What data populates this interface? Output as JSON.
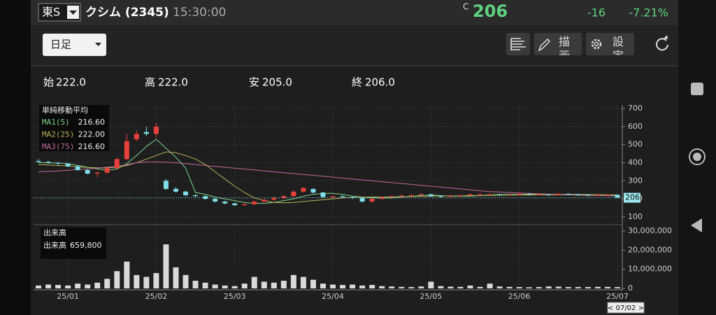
{
  "header": {
    "market": "東S",
    "name": "クシム (2345)",
    "time": "15:30:00",
    "price_prefix": "C",
    "price": "206",
    "change": "-16",
    "change_pct": "-7.21%"
  },
  "toolbar": {
    "period": "日足",
    "draw": "描画",
    "settings": "設定"
  },
  "ohlc": {
    "open_label": "始",
    "open": "222.0",
    "high_label": "高",
    "high": "222.0",
    "low_label": "安",
    "low": "205.0",
    "close_label": "終",
    "close": "206.0"
  },
  "chart_data": {
    "type": "candlestick",
    "categories": [
      null,
      null,
      null,
      "25/01",
      null,
      null,
      null,
      null,
      null,
      null,
      null,
      null,
      "25/02",
      null,
      null,
      null,
      null,
      null,
      null,
      null,
      "25/03",
      null,
      null,
      null,
      null,
      null,
      null,
      null,
      null,
      null,
      "25/04",
      null,
      null,
      null,
      null,
      null,
      null,
      null,
      null,
      null,
      "25/05",
      null,
      null,
      null,
      null,
      null,
      null,
      null,
      null,
      "25/06",
      null,
      null,
      null,
      null,
      null,
      null,
      null,
      null,
      null,
      "25/07"
    ],
    "ylim": [
      80,
      720
    ],
    "yticks": [
      100,
      200,
      300,
      400,
      500,
      600,
      700
    ],
    "grid": true,
    "candles": {
      "up_color": "#e8413c",
      "down_color": "#7fe0e8",
      "open": [
        410,
        405,
        400,
        395,
        380,
        360,
        340,
        345,
        370,
        420,
        530,
        570,
        560,
        300,
        255,
        240,
        220,
        215,
        200,
        185,
        175,
        165,
        170,
        185,
        195,
        205,
        215,
        240,
        255,
        235,
        210,
        215,
        210,
        205,
        185,
        200,
        210,
        215,
        218,
        220,
        225,
        215,
        212,
        215,
        220,
        225,
        225,
        225,
        222,
        222,
        228,
        225,
        225,
        222,
        228,
        225,
        222,
        220,
        222,
        222
      ],
      "high": [
        420,
        410,
        405,
        398,
        385,
        365,
        350,
        375,
        430,
        560,
        580,
        600,
        620,
        310,
        265,
        245,
        225,
        218,
        205,
        190,
        178,
        175,
        190,
        200,
        210,
        220,
        245,
        265,
        258,
        238,
        218,
        218,
        212,
        208,
        205,
        212,
        218,
        222,
        225,
        230,
        228,
        218,
        218,
        225,
        230,
        232,
        230,
        228,
        226,
        232,
        230,
        230,
        228,
        232,
        230,
        228,
        225,
        226,
        226,
        224
      ],
      "low": [
        400,
        395,
        385,
        375,
        355,
        335,
        320,
        340,
        365,
        415,
        520,
        550,
        540,
        250,
        235,
        215,
        210,
        195,
        180,
        170,
        160,
        160,
        165,
        180,
        190,
        200,
        210,
        235,
        230,
        205,
        205,
        205,
        200,
        180,
        180,
        195,
        205,
        210,
        212,
        215,
        210,
        208,
        208,
        212,
        215,
        218,
        218,
        218,
        218,
        220,
        218,
        218,
        216,
        220,
        220,
        218,
        215,
        215,
        215,
        205
      ],
      "close": [
        405,
        400,
        395,
        380,
        360,
        340,
        345,
        370,
        420,
        520,
        560,
        560,
        600,
        255,
        240,
        220,
        215,
        200,
        185,
        175,
        165,
        170,
        185,
        195,
        205,
        215,
        240,
        260,
        235,
        210,
        215,
        210,
        205,
        185,
        200,
        210,
        215,
        218,
        220,
        225,
        215,
        212,
        215,
        220,
        225,
        225,
        225,
        222,
        222,
        228,
        225,
        225,
        222,
        228,
        225,
        222,
        220,
        222,
        222,
        206
      ]
    },
    "ma_title": "単純移動平均",
    "ma": [
      {
        "name": "MA1(5)",
        "value_label": "216.60",
        "color": "#7fd38a",
        "values": [
          400,
          400,
          398,
          395,
          385,
          375,
          365,
          360,
          365,
          395,
          440,
          490,
          530,
          480,
          430,
          370,
          235,
          225,
          210,
          200,
          190,
          180,
          175,
          175,
          180,
          190,
          200,
          215,
          225,
          230,
          230,
          225,
          215,
          210,
          205,
          205,
          205,
          210,
          215,
          218,
          220,
          218,
          215,
          215,
          215,
          218,
          222,
          224,
          225,
          225,
          225,
          225,
          225,
          225,
          225,
          225,
          224,
          223,
          222,
          216.6
        ]
      },
      {
        "name": "MA2(25)",
        "value_label": "222.00",
        "color": "#b9b35a",
        "values": [
          390,
          388,
          385,
          382,
          378,
          374,
          372,
          372,
          375,
          385,
          400,
          420,
          440,
          460,
          455,
          440,
          420,
          390,
          350,
          310,
          270,
          235,
          205,
          190,
          180,
          178,
          180,
          185,
          190,
          195,
          200,
          205,
          208,
          210,
          210,
          210,
          210,
          212,
          213,
          215,
          215,
          216,
          216,
          217,
          218,
          218,
          219,
          220,
          220,
          221,
          221,
          222,
          222,
          222,
          222,
          222,
          222,
          222,
          222,
          222
        ]
      },
      {
        "name": "MA3(75)",
        "value_label": "216.60",
        "color": "#c06a9a",
        "values": [
          350,
          352,
          355,
          358,
          362,
          366,
          370,
          375,
          380,
          390,
          400,
          405,
          405,
          403,
          400,
          395,
          390,
          385,
          380,
          375,
          370,
          365,
          360,
          355,
          350,
          345,
          340,
          335,
          330,
          325,
          320,
          315,
          310,
          305,
          300,
          295,
          290,
          285,
          280,
          275,
          270,
          265,
          260,
          255,
          250,
          245,
          240,
          238,
          235,
          232,
          230,
          228,
          226,
          224,
          222,
          220,
          219,
          218,
          217,
          216.6
        ]
      }
    ],
    "price_marker": {
      "value": 206,
      "label": "206"
    },
    "volume": {
      "title": "出来高",
      "name": "出来高",
      "value_label": "659,800",
      "color": "#d9d9d9",
      "ylim": [
        0,
        32000000
      ],
      "yticks": [
        0,
        {
          "value": 10000000,
          "label": "10,000,000"
        },
        {
          "value": 20000000,
          "label": "20,000,000"
        },
        {
          "value": 30000000,
          "label": "30,000,000"
        }
      ],
      "values": [
        1500000,
        2000000,
        1800000,
        1500000,
        2500000,
        2000000,
        3000000,
        5000000,
        9000000,
        14000000,
        7000000,
        6000000,
        8000000,
        23000000,
        11000000,
        7000000,
        4000000,
        3000000,
        2000000,
        1500000,
        1200000,
        2500000,
        6000000,
        3500000,
        3000000,
        4000000,
        7000000,
        6000000,
        4500000,
        2500000,
        2000000,
        1800000,
        2000000,
        1500000,
        1800000,
        1200000,
        1000000,
        800000,
        700000,
        1000000,
        3500000,
        1200000,
        900000,
        800000,
        1500000,
        800000,
        2500000,
        1000000,
        800000,
        700000,
        600000,
        700000,
        1000000,
        900000,
        700000,
        700000,
        700000,
        800000,
        800000,
        659800
      ]
    },
    "cursor_label": "< 07/02 >"
  }
}
